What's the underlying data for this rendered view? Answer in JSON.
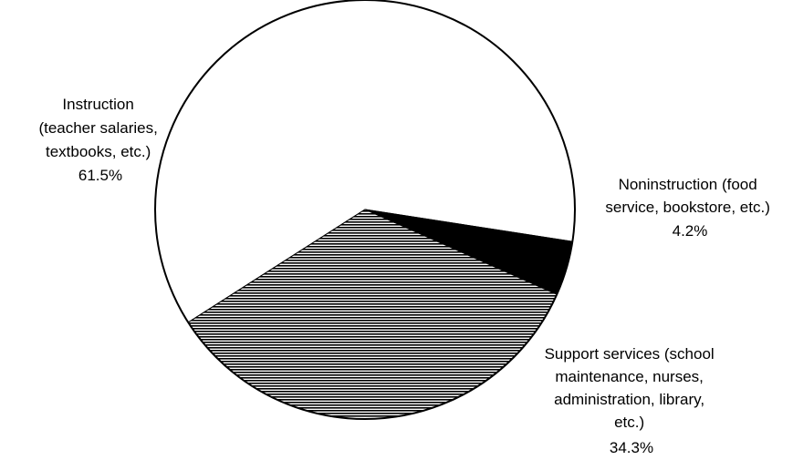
{
  "chart_data": {
    "type": "pie",
    "title": "",
    "legend": "none",
    "slices": [
      {
        "label_lines": [
          "Instruction",
          "(teacher salaries,",
          "textbooks, etc.)"
        ],
        "value": 61.5,
        "value_label": "61.5%",
        "fill": "white"
      },
      {
        "label_lines": [
          "Noninstruction (food",
          "service, bookstore, etc.)"
        ],
        "value": 4.2,
        "value_label": "4.2%",
        "fill": "black"
      },
      {
        "label_lines": [
          "Support services (school",
          "maintenance, nurses,",
          "administration, library,",
          "etc.)"
        ],
        "value": 34.3,
        "value_label": "34.3%",
        "fill": "horizontal-hatch"
      }
    ]
  }
}
